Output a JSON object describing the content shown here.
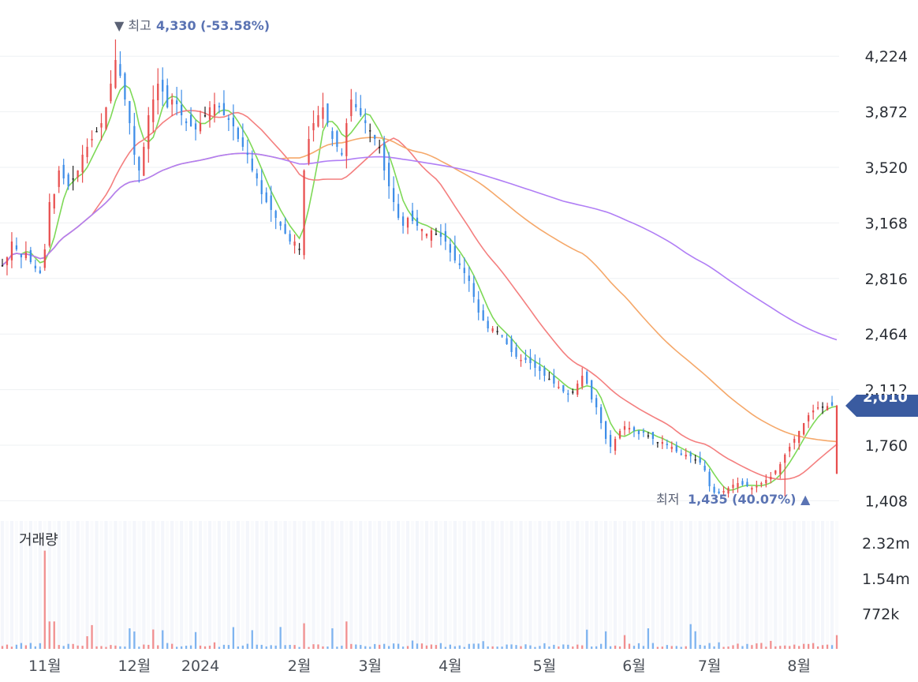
{
  "chart_data": {
    "type": "candlestick",
    "price_axis": {
      "ticks": [
        "4,224",
        "3,872",
        "3,520",
        "3,168",
        "2,816",
        "2,464",
        "2,112",
        "1,760",
        "1,408"
      ],
      "tick_values": [
        4224,
        3872,
        3520,
        3168,
        2816,
        2464,
        2112,
        1760,
        1408
      ],
      "range": [
        1380,
        4380
      ]
    },
    "volume_axis": {
      "title": "거래량",
      "ticks": [
        "2.32m",
        "1.54m",
        "772k"
      ],
      "tick_values": [
        2320000,
        1540000,
        772000
      ],
      "range": [
        0,
        2800000
      ]
    },
    "x_axis": {
      "labels": [
        "11월",
        "12월",
        "2024",
        "2월",
        "3월",
        "4월",
        "5월",
        "6월",
        "7월",
        "8월"
      ],
      "label_bar_index": [
        9,
        28,
        42,
        63,
        78,
        95,
        115,
        134,
        150,
        169
      ],
      "bar_count": 178
    },
    "high_marker": {
      "prefix": "▼ 최고",
      "value": "4,330 (-53.58%)",
      "price": 4330,
      "bar_index": 24
    },
    "low_marker": {
      "prefix": "최저",
      "value": "1,435 (40.07%) ▲",
      "price": 1435,
      "bar_index": 166
    },
    "current_price": {
      "label": "2,010",
      "price": 2010
    },
    "closes": [
      2900,
      2950,
      3050,
      3000,
      2950,
      2980,
      2920,
      2880,
      2850,
      3000,
      3300,
      3350,
      3500,
      3450,
      3400,
      3450,
      3500,
      3600,
      3650,
      3700,
      3750,
      3800,
      3900,
      4050,
      4200,
      4100,
      3950,
      3800,
      3600,
      3500,
      3650,
      3850,
      3950,
      4050,
      4000,
      3900,
      3950,
      3920,
      3850,
      3800,
      3780,
      3760,
      3800,
      3850,
      3900,
      3920,
      3900,
      3850,
      3820,
      3780,
      3700,
      3650,
      3600,
      3500,
      3450,
      3350,
      3300,
      3250,
      3200,
      3150,
      3100,
      3050,
      3050,
      3000,
      3500,
      3700,
      3800,
      3850,
      3900,
      3800,
      3700,
      3650,
      3600,
      3800,
      3950,
      3900,
      3850,
      3800,
      3750,
      3700,
      3650,
      3500,
      3400,
      3300,
      3200,
      3150,
      3200,
      3180,
      3150,
      3130,
      3100,
      3120,
      3100,
      3080,
      3050,
      2980,
      2930,
      2900,
      2850,
      2800,
      2700,
      2600,
      2550,
      2500,
      2500,
      2480,
      2450,
      2400,
      2350,
      2320,
      2300,
      2300,
      2280,
      2250,
      2230,
      2200,
      2180,
      2150,
      2130,
      2100,
      2080,
      2100,
      2150,
      2200,
      2150,
      2050,
      2000,
      1900,
      1800,
      1750,
      1800,
      1850,
      1880,
      1870,
      1850,
      1830,
      1840,
      1820,
      1800,
      1780,
      1780,
      1760,
      1750,
      1720,
      1700,
      1700,
      1690,
      1670,
      1650,
      1600,
      1500,
      1460,
      1455,
      1470,
      1490,
      1510,
      1520,
      1510,
      1500,
      1490,
      1500,
      1520,
      1540,
      1560,
      1600,
      1640,
      1700,
      1750,
      1800,
      1850,
      1900,
      1950,
      1980,
      2000,
      2005,
      2008,
      2010,
      2010
    ],
    "ma_series": [
      {
        "color": "#7ed957",
        "period": 5
      },
      {
        "color": "#f47f7f",
        "period": 20
      },
      {
        "color": "#f5a86a",
        "period": 60
      },
      {
        "color": "#b07ef5",
        "period": 120
      }
    ],
    "colors": {
      "up": "#e84f4f",
      "down": "#3f8ee8",
      "neutral": "#222222",
      "vol_up": "#f28f8f",
      "vol_down": "#7fb4f0",
      "current_badge": "#3a5ba0"
    }
  }
}
